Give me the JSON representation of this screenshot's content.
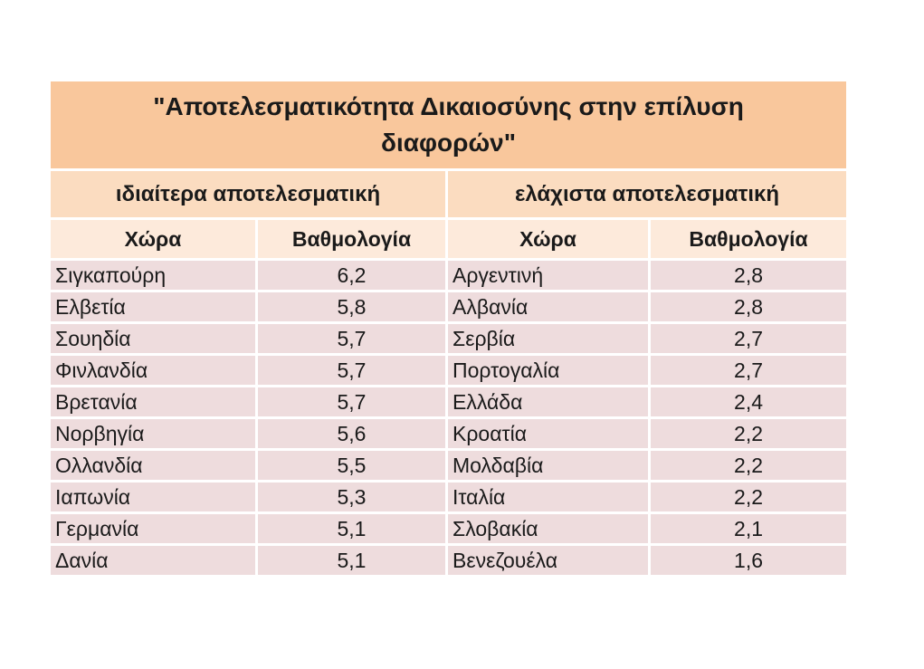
{
  "title": "\"Αποτελεσματικότητα Δικαιοσύνης στην επίλυση διαφορών\"",
  "groups": {
    "left": "ιδιαίτερα αποτελεσματική",
    "right": "ελάχιστα αποτελεσματική"
  },
  "columns": {
    "country": "Χώρα",
    "score": "Βαθμολογία"
  },
  "rows": [
    {
      "left_country": "Σιγκαπούρη",
      "left_score": "6,2",
      "right_country": "Αργεντινή",
      "right_score": "2,8"
    },
    {
      "left_country": "Ελβετία",
      "left_score": "5,8",
      "right_country": "Αλβανία",
      "right_score": "2,8"
    },
    {
      "left_country": "Σουηδία",
      "left_score": "5,7",
      "right_country": "Σερβία",
      "right_score": "2,7"
    },
    {
      "left_country": "Φινλανδία",
      "left_score": "5,7",
      "right_country": "Πορτογαλία",
      "right_score": "2,7"
    },
    {
      "left_country": "Βρετανία",
      "left_score": "5,7",
      "right_country": "Ελλάδα",
      "right_score": "2,4"
    },
    {
      "left_country": "Νορβηγία",
      "left_score": "5,6",
      "right_country": "Κροατία",
      "right_score": "2,2"
    },
    {
      "left_country": "Ολλανδία",
      "left_score": "5,5",
      "right_country": "Μολδαβία",
      "right_score": "2,2"
    },
    {
      "left_country": "Ιαπωνία",
      "left_score": "5,3",
      "right_country": "Ιταλία",
      "right_score": "2,2"
    },
    {
      "left_country": "Γερμανία",
      "left_score": "5,1",
      "right_country": "Σλοβακία",
      "right_score": "2,1"
    },
    {
      "left_country": "Δανία",
      "left_score": "5,1",
      "right_country": "Βενεζουέλα",
      "right_score": "1,6"
    }
  ],
  "colors": {
    "title_bg": "#f9c79c",
    "group_bg": "#fbdcc0",
    "header_bg": "#fdeadb",
    "row_bg": "#eedcdd"
  }
}
